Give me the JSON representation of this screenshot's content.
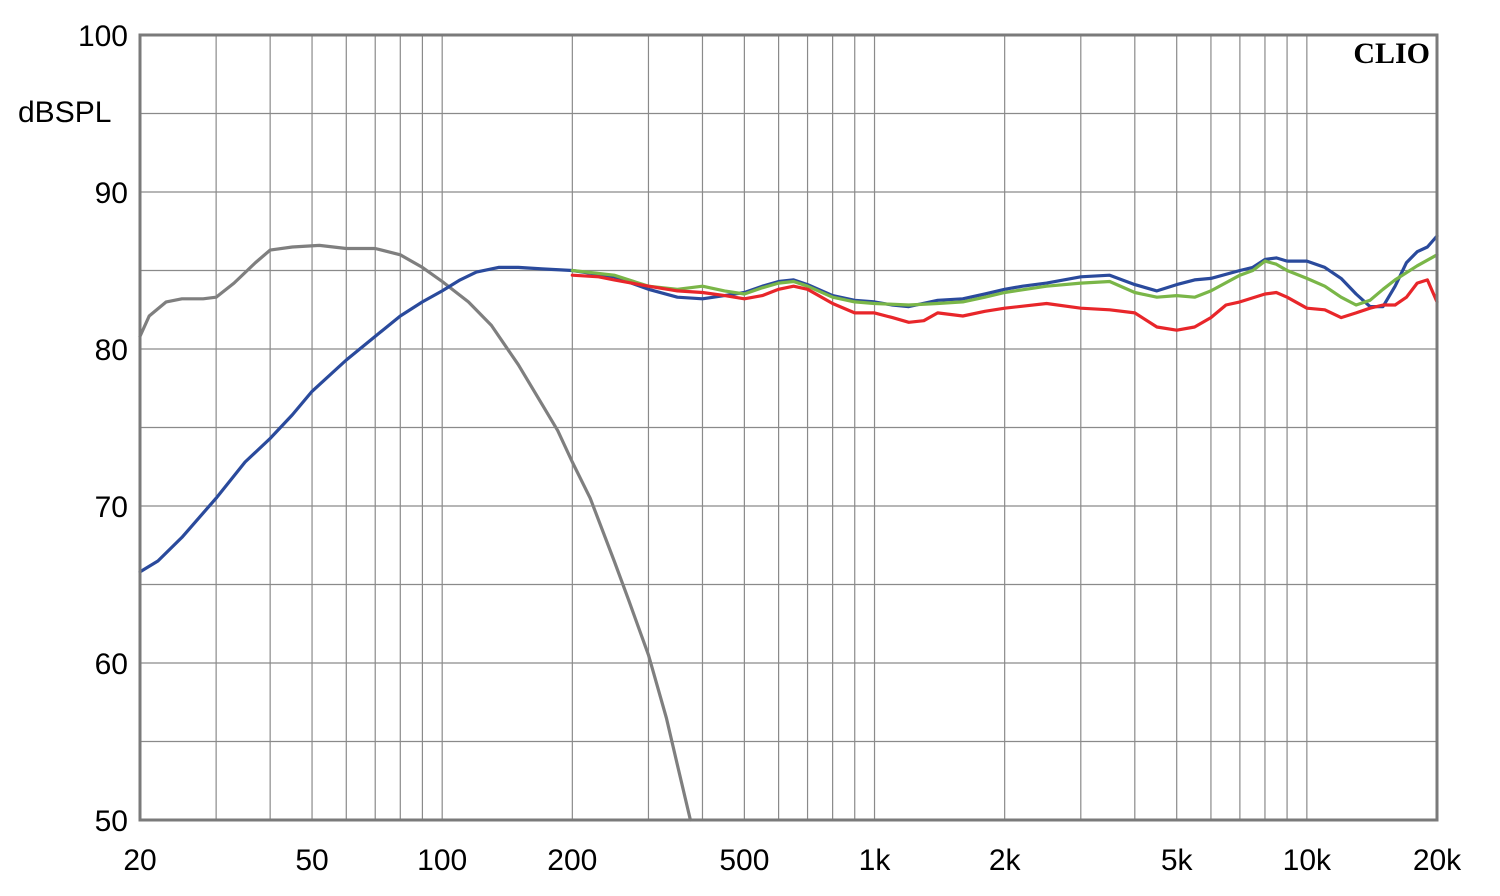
{
  "chart_data": {
    "type": "line",
    "ylabel": "dBSPL",
    "brand": "CLIO",
    "xscale": "log",
    "xlim": [
      20,
      20000
    ],
    "ylim": [
      50,
      100
    ],
    "x_ticks": [
      {
        "value": 20,
        "label": "20"
      },
      {
        "value": 50,
        "label": "50"
      },
      {
        "value": 100,
        "label": "100"
      },
      {
        "value": 200,
        "label": "200"
      },
      {
        "value": 500,
        "label": "500"
      },
      {
        "value": 1000,
        "label": "1k"
      },
      {
        "value": 2000,
        "label": "2k"
      },
      {
        "value": 5000,
        "label": "5k"
      },
      {
        "value": 10000,
        "label": "10k"
      },
      {
        "value": 20000,
        "label": "20k"
      }
    ],
    "y_ticks": [
      {
        "value": 50,
        "label": "50"
      },
      {
        "value": 60,
        "label": "60"
      },
      {
        "value": 70,
        "label": "70"
      },
      {
        "value": 80,
        "label": "80"
      },
      {
        "value": 90,
        "label": "90"
      },
      {
        "value": 100,
        "label": "100"
      }
    ],
    "grid": true,
    "series": [
      {
        "color": "#7f7f7f",
        "points": [
          [
            20,
            80.8
          ],
          [
            21,
            82.1
          ],
          [
            23,
            83.0
          ],
          [
            25,
            83.2
          ],
          [
            28,
            83.2
          ],
          [
            30,
            83.3
          ],
          [
            33,
            84.2
          ],
          [
            37,
            85.5
          ],
          [
            40,
            86.3
          ],
          [
            45,
            86.5
          ],
          [
            52,
            86.6
          ],
          [
            60,
            86.4
          ],
          [
            70,
            86.4
          ],
          [
            80,
            86.0
          ],
          [
            90,
            85.2
          ],
          [
            100,
            84.3
          ],
          [
            115,
            83.0
          ],
          [
            130,
            81.5
          ],
          [
            150,
            79.0
          ],
          [
            170,
            76.5
          ],
          [
            185,
            74.8
          ],
          [
            200,
            72.8
          ],
          [
            220,
            70.5
          ],
          [
            250,
            66.5
          ],
          [
            270,
            64.0
          ],
          [
            300,
            60.5
          ],
          [
            330,
            56.5
          ],
          [
            350,
            53.5
          ],
          [
            375,
            50.0
          ]
        ]
      },
      {
        "color": "#2a4a9c",
        "points": [
          [
            20,
            65.8
          ],
          [
            22,
            66.5
          ],
          [
            25,
            68.0
          ],
          [
            30,
            70.5
          ],
          [
            35,
            72.8
          ],
          [
            40,
            74.3
          ],
          [
            45,
            75.8
          ],
          [
            50,
            77.3
          ],
          [
            60,
            79.3
          ],
          [
            70,
            80.8
          ],
          [
            80,
            82.1
          ],
          [
            90,
            83.0
          ],
          [
            100,
            83.7
          ],
          [
            110,
            84.4
          ],
          [
            120,
            84.9
          ],
          [
            135,
            85.2
          ],
          [
            150,
            85.2
          ],
          [
            170,
            85.1
          ],
          [
            200,
            85.0
          ],
          [
            250,
            84.6
          ],
          [
            300,
            83.8
          ],
          [
            350,
            83.3
          ],
          [
            400,
            83.2
          ],
          [
            450,
            83.4
          ],
          [
            500,
            83.6
          ],
          [
            550,
            84.0
          ],
          [
            600,
            84.3
          ],
          [
            650,
            84.4
          ],
          [
            700,
            84.1
          ],
          [
            800,
            83.4
          ],
          [
            900,
            83.1
          ],
          [
            1000,
            83.0
          ],
          [
            1100,
            82.8
          ],
          [
            1200,
            82.7
          ],
          [
            1400,
            83.1
          ],
          [
            1600,
            83.2
          ],
          [
            1800,
            83.5
          ],
          [
            2000,
            83.8
          ],
          [
            2200,
            84.0
          ],
          [
            2500,
            84.2
          ],
          [
            3000,
            84.6
          ],
          [
            3500,
            84.7
          ],
          [
            4000,
            84.1
          ],
          [
            4500,
            83.7
          ],
          [
            5000,
            84.1
          ],
          [
            5500,
            84.4
          ],
          [
            6000,
            84.5
          ],
          [
            7000,
            85.0
          ],
          [
            7500,
            85.2
          ],
          [
            8000,
            85.7
          ],
          [
            8500,
            85.8
          ],
          [
            9000,
            85.6
          ],
          [
            10000,
            85.6
          ],
          [
            11000,
            85.2
          ],
          [
            12000,
            84.5
          ],
          [
            13000,
            83.5
          ],
          [
            14000,
            82.7
          ],
          [
            15000,
            82.7
          ],
          [
            16000,
            84.0
          ],
          [
            17000,
            85.5
          ],
          [
            18000,
            86.2
          ],
          [
            19000,
            86.5
          ],
          [
            20000,
            87.2
          ]
        ]
      },
      {
        "color": "#7ab648",
        "points": [
          [
            200,
            85.0
          ],
          [
            250,
            84.7
          ],
          [
            300,
            84.0
          ],
          [
            350,
            83.8
          ],
          [
            400,
            84.0
          ],
          [
            450,
            83.7
          ],
          [
            500,
            83.5
          ],
          [
            550,
            83.9
          ],
          [
            600,
            84.2
          ],
          [
            650,
            84.3
          ],
          [
            700,
            84.0
          ],
          [
            800,
            83.3
          ],
          [
            900,
            83.0
          ],
          [
            1000,
            82.9
          ],
          [
            1200,
            82.8
          ],
          [
            1400,
            82.9
          ],
          [
            1600,
            83.0
          ],
          [
            1800,
            83.3
          ],
          [
            2000,
            83.6
          ],
          [
            2500,
            84.0
          ],
          [
            3000,
            84.2
          ],
          [
            3500,
            84.3
          ],
          [
            4000,
            83.6
          ],
          [
            4500,
            83.3
          ],
          [
            5000,
            83.4
          ],
          [
            5500,
            83.3
          ],
          [
            6000,
            83.7
          ],
          [
            7000,
            84.7
          ],
          [
            7500,
            85.0
          ],
          [
            8000,
            85.6
          ],
          [
            8500,
            85.4
          ],
          [
            9000,
            85.0
          ],
          [
            10000,
            84.5
          ],
          [
            11000,
            84.0
          ],
          [
            12000,
            83.3
          ],
          [
            13000,
            82.8
          ],
          [
            14000,
            83.1
          ],
          [
            15000,
            83.8
          ],
          [
            16000,
            84.4
          ],
          [
            18000,
            85.3
          ],
          [
            20000,
            86.0
          ]
        ]
      },
      {
        "color": "#e8262a",
        "points": [
          [
            200,
            84.7
          ],
          [
            230,
            84.6
          ],
          [
            250,
            84.4
          ],
          [
            300,
            84.0
          ],
          [
            350,
            83.7
          ],
          [
            400,
            83.6
          ],
          [
            450,
            83.4
          ],
          [
            500,
            83.2
          ],
          [
            550,
            83.4
          ],
          [
            600,
            83.8
          ],
          [
            650,
            84.0
          ],
          [
            700,
            83.8
          ],
          [
            800,
            82.9
          ],
          [
            900,
            82.3
          ],
          [
            1000,
            82.3
          ],
          [
            1100,
            82.0
          ],
          [
            1200,
            81.7
          ],
          [
            1300,
            81.8
          ],
          [
            1400,
            82.3
          ],
          [
            1600,
            82.1
          ],
          [
            1800,
            82.4
          ],
          [
            2000,
            82.6
          ],
          [
            2500,
            82.9
          ],
          [
            3000,
            82.6
          ],
          [
            3500,
            82.5
          ],
          [
            4000,
            82.3
          ],
          [
            4500,
            81.4
          ],
          [
            5000,
            81.2
          ],
          [
            5500,
            81.4
          ],
          [
            6000,
            82.0
          ],
          [
            6500,
            82.8
          ],
          [
            7000,
            83.0
          ],
          [
            8000,
            83.5
          ],
          [
            8500,
            83.6
          ],
          [
            9000,
            83.3
          ],
          [
            10000,
            82.6
          ],
          [
            11000,
            82.5
          ],
          [
            12000,
            82.0
          ],
          [
            13000,
            82.3
          ],
          [
            14000,
            82.6
          ],
          [
            15000,
            82.8
          ],
          [
            16000,
            82.8
          ],
          [
            17000,
            83.3
          ],
          [
            18000,
            84.2
          ],
          [
            19000,
            84.4
          ],
          [
            20000,
            83.0
          ]
        ]
      }
    ]
  }
}
